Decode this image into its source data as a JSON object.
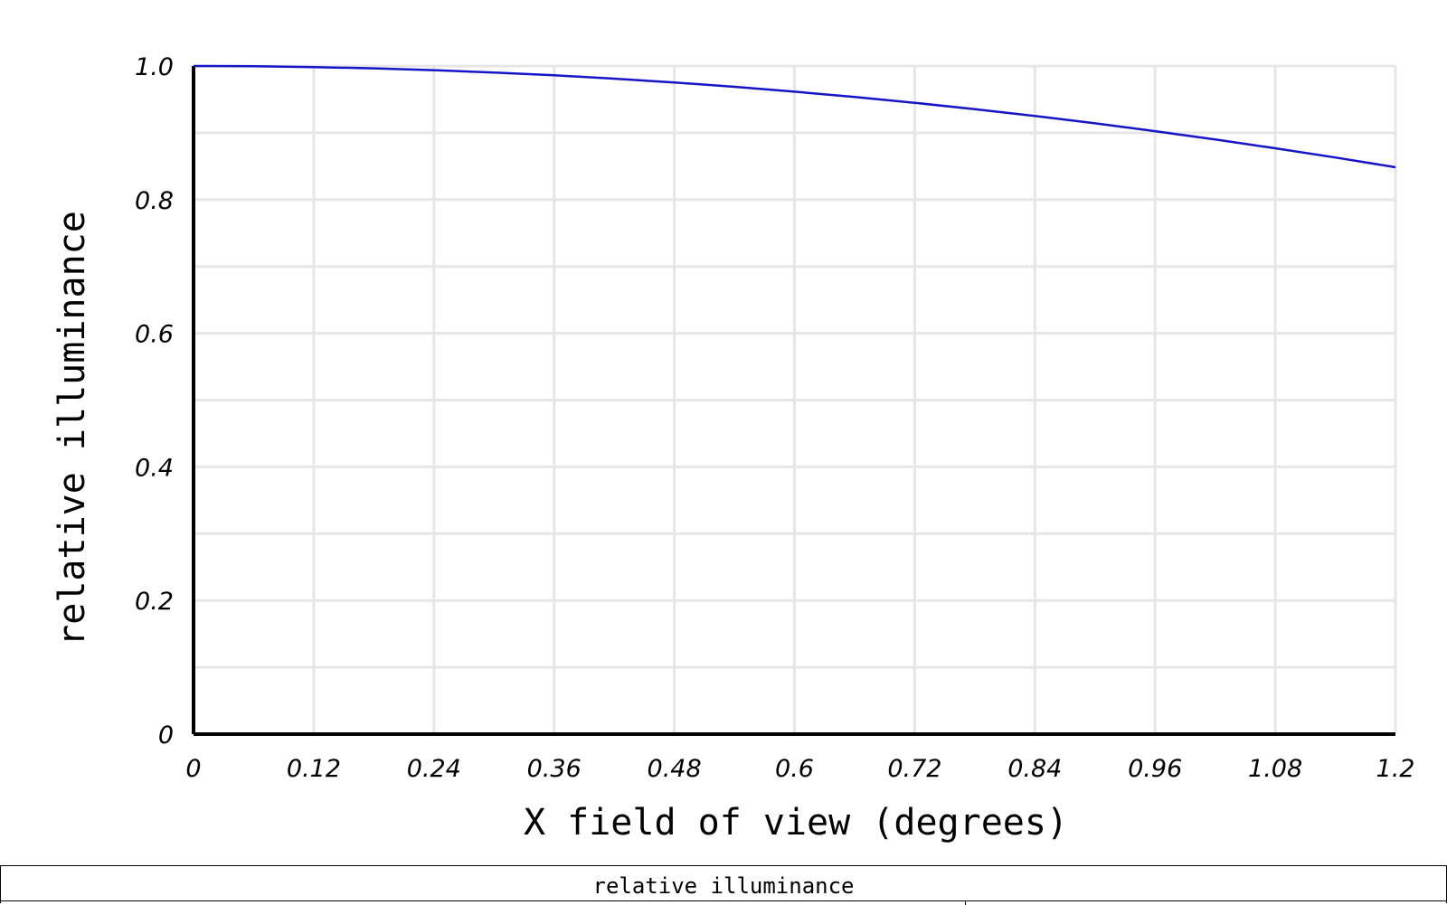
{
  "chart_data": {
    "type": "line",
    "title": "",
    "xlabel": "X field of view (degrees)",
    "ylabel": "relative illuminance",
    "xlim": [
      0,
      1.2
    ],
    "ylim": [
      0,
      1.0
    ],
    "x_ticks": [
      "0",
      "0.12",
      "0.24",
      "0.36",
      "0.48",
      "0.6",
      "0.72",
      "0.84",
      "0.96",
      "1.08",
      "1.2"
    ],
    "y_ticks": [
      "0",
      "0.2",
      "0.4",
      "0.6",
      "0.8",
      "1.0"
    ],
    "grid": true,
    "series": [
      {
        "color": "#1414c8",
        "x": [
          0,
          0.06,
          0.12,
          0.18,
          0.24,
          0.3,
          0.36,
          0.42,
          0.48,
          0.54,
          0.6,
          0.66,
          0.72,
          0.78,
          0.84,
          0.9,
          0.96,
          1.02,
          1.08,
          1.14,
          1.2
        ],
        "y": [
          1.0,
          0.9996,
          0.9984,
          0.9965,
          0.9938,
          0.9903,
          0.9861,
          0.9811,
          0.9754,
          0.9689,
          0.9616,
          0.9536,
          0.9449,
          0.9354,
          0.9252,
          0.9142,
          0.9025,
          0.8901,
          0.8769,
          0.863,
          0.8484
        ]
      }
    ]
  },
  "table": {
    "title": "relative illuminance"
  }
}
